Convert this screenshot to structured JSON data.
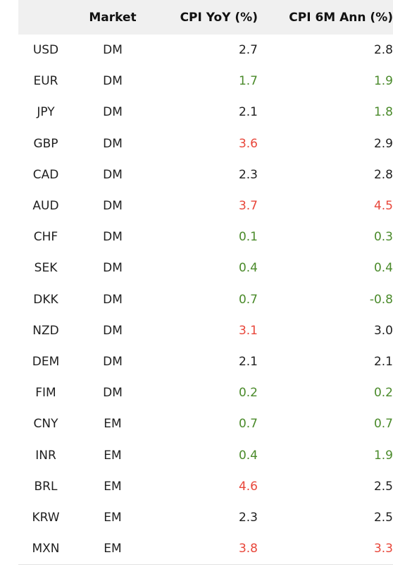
{
  "columns": [
    "",
    "Market",
    "CPI YoY (%)",
    "CPI 6M Ann (%)"
  ],
  "colors": {
    "neutral": "#1f1f1f",
    "green": "#4a8a2a",
    "red": "#e8463a",
    "header_bg": "#f0f0f0"
  },
  "rows": [
    {
      "ccy": "USD",
      "market": "DM",
      "yoy": "2.7",
      "yoy_color": "neutral",
      "ann": "2.8",
      "ann_color": "neutral"
    },
    {
      "ccy": "EUR",
      "market": "DM",
      "yoy": "1.7",
      "yoy_color": "green",
      "ann": "1.9",
      "ann_color": "green"
    },
    {
      "ccy": "JPY",
      "market": "DM",
      "yoy": "2.1",
      "yoy_color": "neutral",
      "ann": "1.8",
      "ann_color": "green"
    },
    {
      "ccy": "GBP",
      "market": "DM",
      "yoy": "3.6",
      "yoy_color": "red",
      "ann": "2.9",
      "ann_color": "neutral"
    },
    {
      "ccy": "CAD",
      "market": "DM",
      "yoy": "2.3",
      "yoy_color": "neutral",
      "ann": "2.8",
      "ann_color": "neutral"
    },
    {
      "ccy": "AUD",
      "market": "DM",
      "yoy": "3.7",
      "yoy_color": "red",
      "ann": "4.5",
      "ann_color": "red"
    },
    {
      "ccy": "CHF",
      "market": "DM",
      "yoy": "0.1",
      "yoy_color": "green",
      "ann": "0.3",
      "ann_color": "green"
    },
    {
      "ccy": "SEK",
      "market": "DM",
      "yoy": "0.4",
      "yoy_color": "green",
      "ann": "0.4",
      "ann_color": "green"
    },
    {
      "ccy": "DKK",
      "market": "DM",
      "yoy": "0.7",
      "yoy_color": "green",
      "ann": "-0.8",
      "ann_color": "green"
    },
    {
      "ccy": "NZD",
      "market": "DM",
      "yoy": "3.1",
      "yoy_color": "red",
      "ann": "3.0",
      "ann_color": "neutral"
    },
    {
      "ccy": "DEM",
      "market": "DM",
      "yoy": "2.1",
      "yoy_color": "neutral",
      "ann": "2.1",
      "ann_color": "neutral"
    },
    {
      "ccy": "FIM",
      "market": "DM",
      "yoy": "0.2",
      "yoy_color": "green",
      "ann": "0.2",
      "ann_color": "green"
    },
    {
      "ccy": "CNY",
      "market": "EM",
      "yoy": "0.7",
      "yoy_color": "green",
      "ann": "0.7",
      "ann_color": "green"
    },
    {
      "ccy": "INR",
      "market": "EM",
      "yoy": "0.4",
      "yoy_color": "green",
      "ann": "1.9",
      "ann_color": "green"
    },
    {
      "ccy": "BRL",
      "market": "EM",
      "yoy": "4.6",
      "yoy_color": "red",
      "ann": "2.5",
      "ann_color": "neutral"
    },
    {
      "ccy": "KRW",
      "market": "EM",
      "yoy": "2.3",
      "yoy_color": "neutral",
      "ann": "2.5",
      "ann_color": "neutral"
    },
    {
      "ccy": "MXN",
      "market": "EM",
      "yoy": "3.8",
      "yoy_color": "red",
      "ann": "3.3",
      "ann_color": "red"
    }
  ]
}
